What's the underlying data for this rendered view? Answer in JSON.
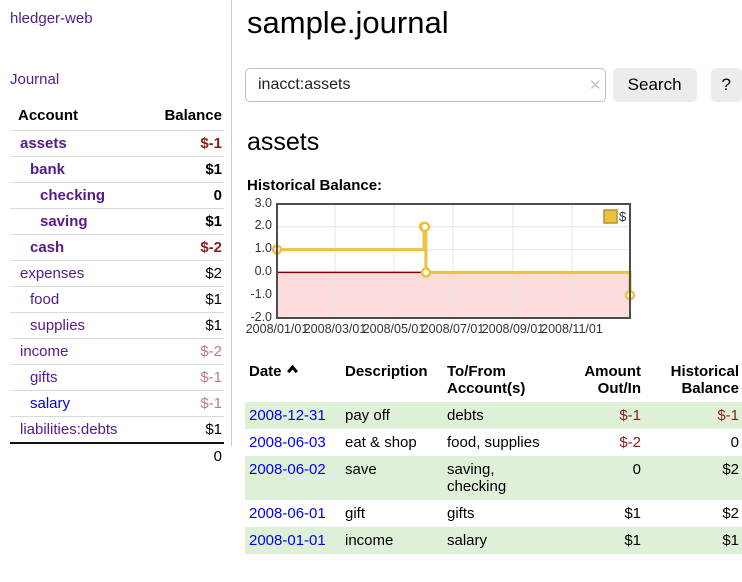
{
  "colors": {
    "link_purple": "#551A8B",
    "link_blue": "#0000EE",
    "negative_strong": "#8b1c1c",
    "negative_soft": "#b97e7e",
    "row_stripe_green": "#dff0d8",
    "series_gold": "#EDC240",
    "chart_negative_region": "#fcdcdc",
    "chart_zero_line": "#8b0000"
  },
  "sidebar": {
    "brand": "hledger-web",
    "nav_journal": "Journal",
    "accounts_header": {
      "account": "Account",
      "balance": "Balance"
    },
    "accounts": [
      {
        "name": "assets",
        "indent": 0,
        "in_acct": true,
        "link": "purple",
        "balance": "$-1",
        "neg": "strong"
      },
      {
        "name": "bank",
        "indent": 1,
        "in_acct": true,
        "link": "purple",
        "balance": "$1",
        "neg": "none"
      },
      {
        "name": "checking",
        "indent": 2,
        "in_acct": true,
        "link": "purple",
        "balance": "0",
        "neg": "none"
      },
      {
        "name": "saving",
        "indent": 2,
        "in_acct": true,
        "link": "purple",
        "balance": "$1",
        "neg": "none"
      },
      {
        "name": "cash",
        "indent": 1,
        "in_acct": true,
        "link": "purple",
        "balance": "$-2",
        "neg": "strong"
      },
      {
        "name": "expenses",
        "indent": 0,
        "in_acct": false,
        "link": "purple",
        "balance": "$2",
        "neg": "none"
      },
      {
        "name": "food",
        "indent": 1,
        "in_acct": false,
        "link": "purple",
        "balance": "$1",
        "neg": "none"
      },
      {
        "name": "supplies",
        "indent": 1,
        "in_acct": false,
        "link": "purple",
        "balance": "$1",
        "neg": "none"
      },
      {
        "name": "income",
        "indent": 0,
        "in_acct": false,
        "link": "purple",
        "balance": "$-2",
        "neg": "soft"
      },
      {
        "name": "gifts",
        "indent": 1,
        "in_acct": false,
        "link": "purple",
        "balance": "$-1",
        "neg": "soft"
      },
      {
        "name": "salary",
        "indent": 1,
        "in_acct": false,
        "link": "blue",
        "balance": "$-1",
        "neg": "soft"
      },
      {
        "name": "liabilities:debts",
        "indent": 0,
        "in_acct": false,
        "link": "purple",
        "balance": "$1",
        "neg": "none"
      }
    ],
    "total": "0"
  },
  "main": {
    "title": "sample.journal",
    "search": {
      "value": "inacct:assets",
      "clear_icon": "✕",
      "button": "Search",
      "help": "?"
    },
    "account_heading": "assets",
    "chart_heading": "Historical Balance:",
    "table": {
      "headers": {
        "date": "Date",
        "description": "Description",
        "tofrom": "To/From\nAccount(s)",
        "amount": "Amount\nOut/In",
        "balance": "Historical\nBalance"
      },
      "rows": [
        {
          "date": "2008-12-31",
          "description": "pay off",
          "accounts": "debts",
          "amount": "$-1",
          "amount_neg": true,
          "balance": "$-1",
          "balance_neg": true
        },
        {
          "date": "2008-06-03",
          "description": "eat & shop",
          "accounts": "food, supplies",
          "amount": "$-2",
          "amount_neg": true,
          "balance": "0",
          "balance_neg": false
        },
        {
          "date": "2008-06-02",
          "description": "save",
          "accounts": "saving,\nchecking",
          "amount": "0",
          "amount_neg": false,
          "balance": "$2",
          "balance_neg": false
        },
        {
          "date": "2008-06-01",
          "description": "gift",
          "accounts": "gifts",
          "amount": "$1",
          "amount_neg": false,
          "balance": "$2",
          "balance_neg": false
        },
        {
          "date": "2008-01-01",
          "description": "income",
          "accounts": "salary",
          "amount": "$1",
          "amount_neg": false,
          "balance": "$1",
          "balance_neg": false
        }
      ]
    }
  },
  "chart_data": {
    "type": "line",
    "title": "Historical Balance:",
    "steps": true,
    "series": [
      {
        "name": "$",
        "color": "#EDC240",
        "points": [
          [
            "2008-01-01",
            1
          ],
          [
            "2008-06-01",
            2
          ],
          [
            "2008-06-02",
            2
          ],
          [
            "2008-06-03",
            0
          ],
          [
            "2008-12-31",
            -1
          ]
        ]
      }
    ],
    "x_range": [
      "2008-01-01",
      "2008-12-31"
    ],
    "ylim": [
      -2,
      3
    ],
    "yticks": [
      {
        "v": 3,
        "label": "3.0"
      },
      {
        "v": 2,
        "label": "2.0"
      },
      {
        "v": 1,
        "label": "1.0"
      },
      {
        "v": 0,
        "label": "0.0"
      },
      {
        "v": -1,
        "label": "-1.0"
      },
      {
        "v": -2,
        "label": "-2.0"
      }
    ],
    "xticks": [
      {
        "date": "2008-01-01",
        "label": "2008/01/01"
      },
      {
        "date": "2008-03-01",
        "label": "2008/03/01"
      },
      {
        "date": "2008-05-01",
        "label": "2008/05/01"
      },
      {
        "date": "2008-07-01",
        "label": "2008/07/01"
      },
      {
        "date": "2008-09-01",
        "label": "2008/09/01"
      },
      {
        "date": "2008-11-01",
        "label": "2008/11/01"
      }
    ],
    "grid": true,
    "grid_color": "#e6e6e6",
    "negative_region_color": "#fcdcdc",
    "zero_line_color": "#8b0000",
    "legend": {
      "label": "$",
      "position": "top-right"
    }
  }
}
